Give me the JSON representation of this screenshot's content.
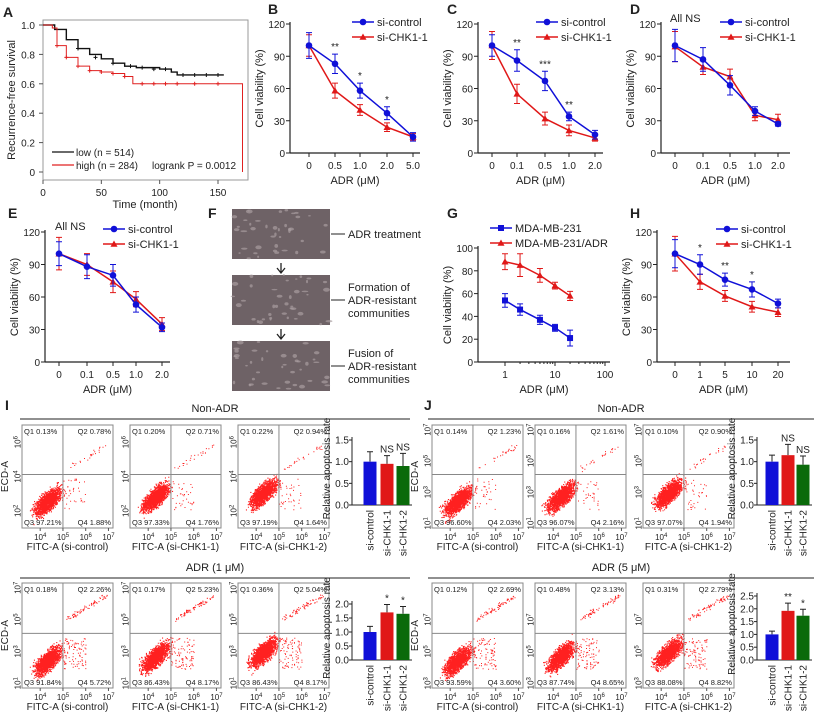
{
  "colors": {
    "control": "#1010d8",
    "chk1": "#e01818",
    "chk2": "#0a6a0a",
    "low": "#111111",
    "high": "#e02020",
    "gate": "#888888",
    "dots": "#ff2020",
    "micro_bg": "#6e6266"
  },
  "chart_data": [
    {
      "id": "A",
      "panel_label": "A",
      "type": "line",
      "subtype": "kaplan-meier",
      "xlabel": "Time (month)",
      "ylabel": "Recurrence-free survival",
      "xlim": [
        0,
        170
      ],
      "ylim": [
        0,
        1.0
      ],
      "xticks": [
        "0",
        "50",
        "100",
        "150"
      ],
      "xtick_values": [
        0,
        50,
        100,
        150
      ],
      "yticks": [
        "0",
        "0.2",
        "0.4",
        "0.6",
        "0.8",
        "1.0"
      ],
      "ytick_values": [
        0,
        0.2,
        0.4,
        0.6,
        0.8,
        1.0
      ],
      "series": [
        {
          "name": "low (n = 514)",
          "color": "#111111",
          "points": [
            [
              0,
              1
            ],
            [
              10,
              0.97
            ],
            [
              20,
              0.9
            ],
            [
              30,
              0.84
            ],
            [
              40,
              0.8
            ],
            [
              50,
              0.77
            ],
            [
              60,
              0.74
            ],
            [
              70,
              0.72
            ],
            [
              80,
              0.71
            ],
            [
              100,
              0.7
            ],
            [
              110,
              0.68
            ],
            [
              115,
              0.66
            ],
            [
              155,
              0.66
            ]
          ]
        },
        {
          "name": "high (n = 284)",
          "color": "#e02020",
          "points": [
            [
              0,
              1
            ],
            [
              8,
              0.98
            ],
            [
              12,
              0.86
            ],
            [
              20,
              0.78
            ],
            [
              30,
              0.72
            ],
            [
              40,
              0.69
            ],
            [
              50,
              0.68
            ],
            [
              60,
              0.67
            ],
            [
              70,
              0.65
            ],
            [
              77,
              0.6
            ],
            [
              170,
              0.6
            ],
            [
              171,
              0
            ]
          ]
        }
      ],
      "annotation": "logrank P = 0.0012",
      "legend": "bottom-left"
    },
    {
      "id": "B",
      "panel_label": "B",
      "type": "line",
      "xlabel": "ADR (μM)",
      "ylabel": "Cell viability (%)",
      "categories": [
        "0",
        "0.5",
        "1.0",
        "2.0",
        "5.0"
      ],
      "ylim": [
        0,
        120
      ],
      "yticks": [
        "0",
        "30",
        "60",
        "90",
        "120"
      ],
      "series": [
        {
          "name": "si-control",
          "marker": "circle",
          "values": [
            100,
            83,
            58,
            37,
            15
          ],
          "errors": [
            12,
            9,
            7,
            6,
            4
          ]
        },
        {
          "name": "si-CHK1-1",
          "marker": "triangle",
          "values": [
            100,
            58,
            40,
            24,
            15
          ],
          "errors": [
            10,
            7,
            5,
            4,
            3
          ]
        }
      ],
      "significance": [
        "",
        "**",
        "*",
        "*",
        ""
      ],
      "legend": "top-right"
    },
    {
      "id": "C",
      "panel_label": "C",
      "type": "line",
      "xlabel": "ADR (μM)",
      "ylabel": "Cell viability (%)",
      "categories": [
        "0",
        "0.1",
        "0.5",
        "1.0",
        "2.0"
      ],
      "ylim": [
        0,
        120
      ],
      "yticks": [
        "0",
        "30",
        "60",
        "90",
        "120"
      ],
      "series": [
        {
          "name": "si-control",
          "marker": "circle",
          "values": [
            100,
            86,
            67,
            34,
            17
          ],
          "errors": [
            10,
            10,
            9,
            4,
            4
          ]
        },
        {
          "name": "si-CHK1-1",
          "marker": "triangle",
          "values": [
            100,
            55,
            32,
            21,
            14
          ],
          "errors": [
            13,
            9,
            6,
            5,
            3
          ]
        }
      ],
      "significance": [
        "",
        "**",
        "***",
        "**",
        ""
      ],
      "legend": "top-right"
    },
    {
      "id": "D",
      "panel_label": "D",
      "type": "line",
      "xlabel": "ADR (μM)",
      "ylabel": "Cell viability (%)",
      "categories": [
        "0",
        "0.1",
        "0.5",
        "1.0",
        "2.0"
      ],
      "ylim": [
        0,
        120
      ],
      "yticks": [
        "0",
        "30",
        "60",
        "90",
        "120"
      ],
      "series": [
        {
          "name": "si-control",
          "marker": "circle",
          "values": [
            100,
            87,
            63,
            39,
            27
          ],
          "errors": [
            15,
            11,
            9,
            4,
            2
          ]
        },
        {
          "name": "si-CHK1-1",
          "marker": "triangle",
          "values": [
            99,
            80,
            71,
            35,
            31
          ],
          "errors": [
            14,
            7,
            7,
            5,
            5
          ]
        }
      ],
      "annotation": "All NS",
      "legend": "top-right"
    },
    {
      "id": "E",
      "panel_label": "E",
      "type": "line",
      "xlabel": "ADR (μM)",
      "ylabel": "Cell viability (%)",
      "categories": [
        "0",
        "0.1",
        "0.5",
        "1.0",
        "2.0"
      ],
      "ylim": [
        0,
        120
      ],
      "yticks": [
        "0",
        "30",
        "60",
        "90",
        "120"
      ],
      "series": [
        {
          "name": "si-control",
          "marker": "circle",
          "values": [
            100,
            88,
            80,
            53,
            32
          ],
          "errors": [
            11,
            11,
            10,
            7,
            4
          ]
        },
        {
          "name": "si-CHK1-1",
          "marker": "triangle",
          "values": [
            100,
            90,
            74,
            58,
            35
          ],
          "errors": [
            15,
            10,
            10,
            7,
            6
          ]
        }
      ],
      "annotation": "All NS",
      "legend": "top-right"
    },
    {
      "id": "G",
      "panel_label": "G",
      "type": "line",
      "xscale": "log",
      "xlabel": "ADR (μM)",
      "ylabel": "Cell viability (%)",
      "x": [
        1,
        2,
        5,
        10,
        20
      ],
      "xlim": [
        1,
        100
      ],
      "xticks": [
        "1",
        "10",
        "100"
      ],
      "xtick_values": [
        1,
        10,
        100
      ],
      "ylim": [
        0,
        100
      ],
      "yticks": [
        "0",
        "20",
        "40",
        "60",
        "80",
        "100"
      ],
      "series": [
        {
          "name": "MDA-MB-231",
          "marker": "square",
          "values": [
            54,
            46,
            37,
            30,
            21
          ],
          "errors": [
            6,
            5,
            4,
            3,
            7
          ]
        },
        {
          "name": "MDA-MB-231/ADR",
          "marker": "triangle",
          "values": [
            88,
            85,
            76,
            67,
            58
          ],
          "errors": [
            7,
            10,
            6,
            3,
            4
          ]
        }
      ],
      "legend": "top"
    },
    {
      "id": "H",
      "panel_label": "H",
      "type": "line",
      "xlabel": "ADR (μM)",
      "ylabel": "Cell viability (%)",
      "categories": [
        "0",
        "1",
        "5",
        "10",
        "20"
      ],
      "ylim": [
        0,
        120
      ],
      "yticks": [
        "0",
        "30",
        "60",
        "90",
        "120"
      ],
      "series": [
        {
          "name": "si-control",
          "marker": "circle",
          "values": [
            100,
            90,
            76,
            67,
            54
          ],
          "errors": [
            13,
            9,
            6,
            7,
            4
          ]
        },
        {
          "name": "si-CHK1-1",
          "marker": "triangle",
          "values": [
            100,
            74,
            61,
            51,
            46
          ],
          "errors": [
            16,
            7,
            5,
            5,
            4
          ]
        }
      ],
      "significance": [
        "",
        "*",
        "**",
        "*",
        ""
      ],
      "legend": "top-right"
    },
    {
      "id": "I1",
      "type": "bar",
      "ylabel": "Relative apoptosis rate",
      "categories": [
        "si-control",
        "si-CHK1-1",
        "si-CHK1-2"
      ],
      "values": [
        1.0,
        0.95,
        0.9
      ],
      "errors": [
        0.23,
        0.19,
        0.29
      ],
      "significance": [
        "",
        "NS",
        "NS"
      ],
      "ylim": [
        0,
        1.5
      ],
      "yticks": [
        "0.0",
        "0.5",
        "1.0",
        "1.5"
      ]
    },
    {
      "id": "I2",
      "type": "bar",
      "ylabel": "Relative apoptosis rate",
      "categories": [
        "si-control",
        "si-CHK1-1",
        "si-CHK1-2"
      ],
      "values": [
        1.0,
        1.7,
        1.65
      ],
      "errors": [
        0.2,
        0.28,
        0.26
      ],
      "significance": [
        "",
        "*",
        "*"
      ],
      "ylim": [
        0,
        2.0
      ],
      "yticks": [
        "0.0",
        "0.5",
        "1.0",
        "1.5",
        "2.0"
      ]
    },
    {
      "id": "J1",
      "type": "bar",
      "ylabel": "Relative apoptosis rate",
      "categories": [
        "si-control",
        "si-CHK1-1",
        "si-CHK1-2"
      ],
      "values": [
        1.0,
        1.15,
        0.93
      ],
      "errors": [
        0.15,
        0.25,
        0.2
      ],
      "significance": [
        "",
        "NS",
        "NS"
      ],
      "ylim": [
        0,
        1.5
      ],
      "yticks": [
        "0.0",
        "0.5",
        "1.0",
        "1.5"
      ]
    },
    {
      "id": "J2",
      "type": "bar",
      "ylabel": "Relative apoptosis rate",
      "categories": [
        "si-control",
        "si-CHK1-1",
        "si-CHK1-2"
      ],
      "values": [
        1.0,
        1.92,
        1.73
      ],
      "errors": [
        0.13,
        0.3,
        0.25
      ],
      "significance": [
        "",
        "**",
        "*"
      ],
      "ylim": [
        0,
        2.5
      ],
      "yticks": [
        "0.0",
        "0.5",
        "1.0",
        "1.5",
        "2.0",
        "2.5"
      ]
    }
  ],
  "panel_f": {
    "label": "F",
    "steps": [
      "ADR treatment",
      "Formation of\nADR-resistant\ncommunities",
      "Fusion of\nADR-resistant\ncommunities"
    ]
  },
  "flow": {
    "I": {
      "label": "I",
      "rows": [
        {
          "title": "Non-ADR",
          "ylabel": "ECD-A",
          "yticks_exp": [
            2,
            4,
            6
          ],
          "panels": [
            {
              "xlabel": "FITC-A (si-control)",
              "q": [
                "Q1 0.13%",
                "Q2 0.78%",
                "Q3 97.21%",
                "Q4 1.88%"
              ]
            },
            {
              "xlabel": "FITC-A (si-CHK1-1)",
              "q": [
                "Q1 0.20%",
                "Q2 0.71%",
                "Q3 97.33%",
                "Q4 1.76%"
              ]
            },
            {
              "xlabel": "FITC-A (si-CHK1-2)",
              "q": [
                "Q1 0.22%",
                "Q2 0.94%",
                "Q3 97.19%",
                "Q4 1.64%"
              ]
            }
          ]
        },
        {
          "title": "ADR (1 μM)",
          "ylabel": "ECD-A",
          "yticks_exp": [
            1,
            3,
            5,
            7
          ],
          "panels": [
            {
              "xlabel": "FITC-A (si-control)",
              "q": [
                "Q1 0.18%",
                "Q2 2.26%",
                "Q3 91.84%",
                "Q4 5.72%"
              ]
            },
            {
              "xlabel": "FITC-A (si-CHK1-1)",
              "q": [
                "Q1 0.17%",
                "Q2 5.23%",
                "Q3 86.43%",
                "Q4 8.17%"
              ]
            },
            {
              "xlabel": "FITC-A (si-CHK1-2)",
              "q": [
                "Q1 0.36%",
                "Q2 5.04%",
                "Q3 86.43%",
                "Q4 8.17%"
              ]
            }
          ]
        }
      ]
    },
    "J": {
      "label": "J",
      "rows": [
        {
          "title": "Non-ADR",
          "ylabel": "ECD-A",
          "yticks_exp": [
            1,
            3,
            5,
            7
          ],
          "panels": [
            {
              "xlabel": "FITC-A (si-control)",
              "q": [
                "Q1 0.14%",
                "Q2 1.23%",
                "Q3 96.60%",
                "Q4 2.03%"
              ]
            },
            {
              "xlabel": "FITC-A (si-CHK1-1)",
              "q": [
                "Q1 0.16%",
                "Q2 1.61%",
                "Q3 96.07%",
                "Q4 2.16%"
              ]
            },
            {
              "xlabel": "FITC-A (si-CHK1-2)",
              "q": [
                "Q1 0.10%",
                "Q2 0.90%",
                "Q3 97.07%",
                "Q4 1.94%"
              ]
            }
          ]
        },
        {
          "title": "ADR (5 μM)",
          "ylabel": "ECD-A",
          "yticks_exp": [
            3,
            5,
            7
          ],
          "panels": [
            {
              "xlabel": "FITC-A (si-control)",
              "q": [
                "Q1 0.12%",
                "Q2 2.69%",
                "Q3 93.59%",
                "Q4 3.60%"
              ]
            },
            {
              "xlabel": "FITC-A (si-CHK1-1)",
              "q": [
                "Q1 0.48%",
                "Q2 3.13%",
                "Q3 87.74%",
                "Q4 8.65%"
              ]
            },
            {
              "xlabel": "FITC-A (si-CHK1-2)",
              "q": [
                "Q1 0.31%",
                "Q2 2.79%",
                "Q3 88.08%",
                "Q4 8.82%"
              ]
            }
          ]
        }
      ]
    },
    "xticks_exp": [
      4,
      5,
      6,
      7
    ]
  }
}
